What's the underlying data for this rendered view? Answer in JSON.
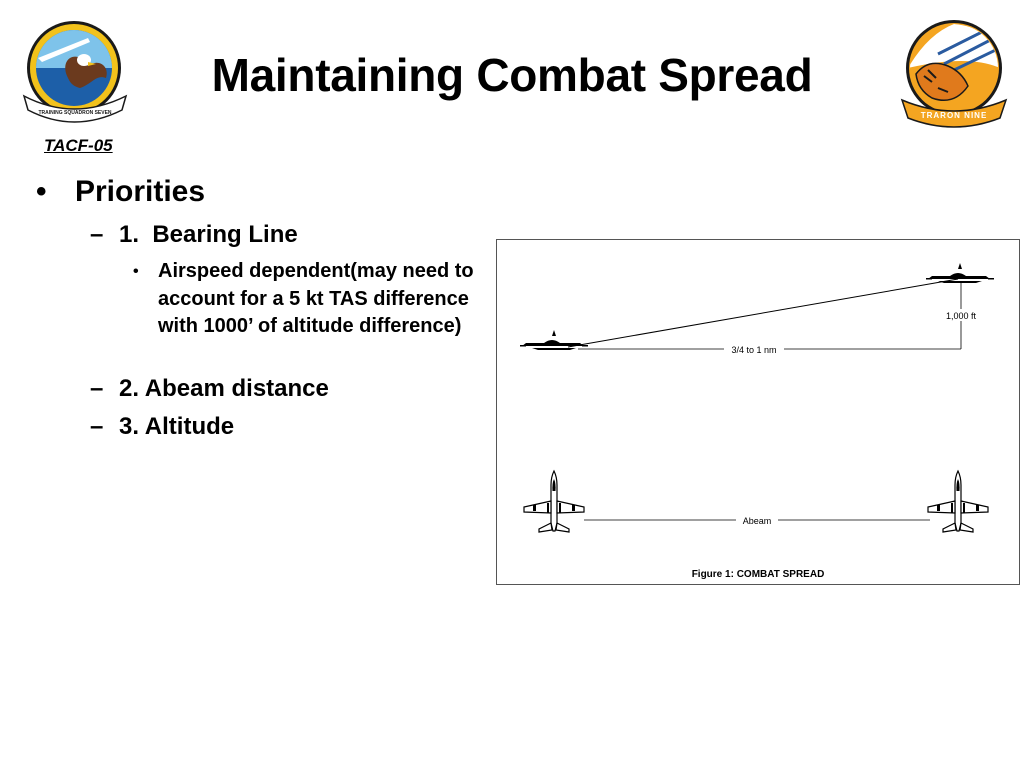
{
  "slide": {
    "title": "Maintaining Combat Spread",
    "code": "TACF-05"
  },
  "logos": {
    "left_text": "TRAINING SQUADRON SEVEN",
    "right_text": "TRARON NINE"
  },
  "bullets": {
    "l1_marker": "•",
    "l1_text": "Priorities",
    "items": [
      {
        "marker": "–",
        "text": "1.  Bearing Line"
      },
      {
        "marker": "–",
        "text": "2. Abeam distance"
      },
      {
        "marker": "–",
        "text": "3. Altitude"
      }
    ],
    "sub_marker": "•",
    "sub_text": "Airspeed dependent(may need to account for a 5 kt TAS difference with 1000’ of altitude difference)"
  },
  "figure": {
    "label_distance": "3/4 to 1 nm",
    "label_altitude": "1,000 ft",
    "label_abeam": "Abeam",
    "caption": "Figure 1:  COMBAT SPREAD"
  }
}
